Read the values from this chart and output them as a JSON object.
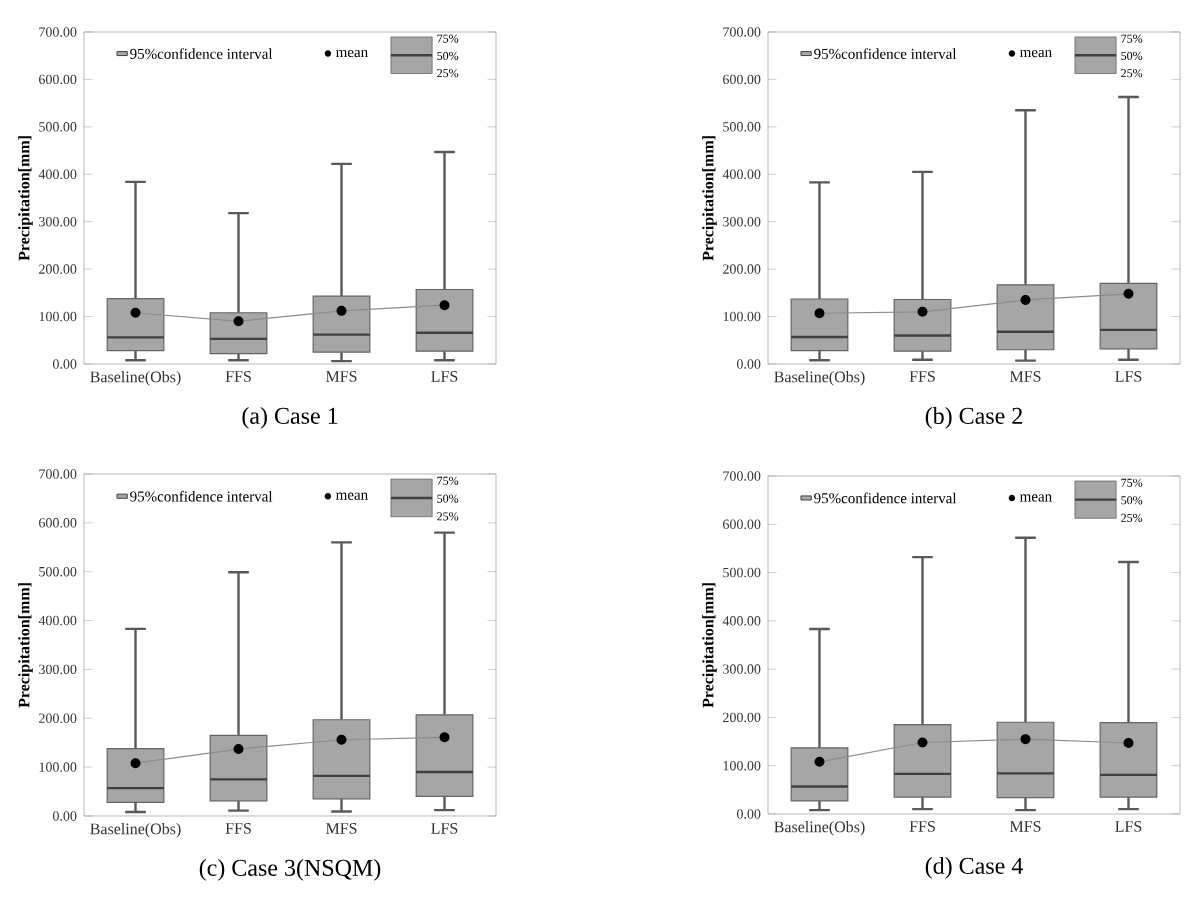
{
  "chart_data": [
    {
      "type": "box",
      "title": "(a) Case 1",
      "ylabel": "Precipitation[mm]",
      "categories": [
        "Baseline(Obs)",
        "FFS",
        "MFS",
        "LFS"
      ],
      "ylim": [
        0,
        700
      ],
      "yticks": [
        {
          "value": 0,
          "label": "0.00"
        },
        {
          "value": 100,
          "label": "100.00"
        },
        {
          "value": 200,
          "label": "200.00"
        },
        {
          "value": 300,
          "label": "300.00"
        },
        {
          "value": 400,
          "label": "400.00"
        },
        {
          "value": 500,
          "label": "500.00"
        },
        {
          "value": 600,
          "label": "600.00"
        },
        {
          "value": 700,
          "label": "700.00"
        }
      ],
      "legend": "top",
      "marker": "circle",
      "annotations": [
        "75%",
        "50%",
        "25%"
      ],
      "series": [
        {
          "name": "95%confidence interval",
          "color": "#a6a6a6",
          "boxes": [
            {
              "low": 8,
              "q1": 28,
              "median": 56,
              "q3": 138,
              "high": 384
            },
            {
              "low": 8,
              "q1": 22,
              "median": 53,
              "q3": 108,
              "high": 318
            },
            {
              "low": 6,
              "q1": 25,
              "median": 62,
              "q3": 143,
              "high": 422
            },
            {
              "low": 8,
              "q1": 27,
              "median": 66,
              "q3": 157,
              "high": 447
            }
          ]
        },
        {
          "name": "mean",
          "type": "line",
          "color": "#000000",
          "values": [
            108,
            90,
            112,
            124
          ]
        }
      ]
    },
    {
      "type": "box",
      "title": "(b) Case 2",
      "ylabel": "Precipitation[mm]",
      "categories": [
        "Baseline(Obs)",
        "FFS",
        "MFS",
        "LFS"
      ],
      "ylim": [
        0,
        700
      ],
      "yticks": [
        {
          "value": 0,
          "label": "0.00"
        },
        {
          "value": 100,
          "label": "100.00"
        },
        {
          "value": 200,
          "label": "200.00"
        },
        {
          "value": 300,
          "label": "300.00"
        },
        {
          "value": 400,
          "label": "400.00"
        },
        {
          "value": 500,
          "label": "500.00"
        },
        {
          "value": 600,
          "label": "600.00"
        },
        {
          "value": 700,
          "label": "700.00"
        }
      ],
      "legend": "top",
      "marker": "circle",
      "annotations": [
        "75%",
        "50%",
        "25%"
      ],
      "series": [
        {
          "name": "95%confidence interval",
          "color": "#a6a6a6",
          "boxes": [
            {
              "low": 8,
              "q1": 28,
              "median": 57,
              "q3": 137,
              "high": 383
            },
            {
              "low": 9,
              "q1": 27,
              "median": 60,
              "q3": 136,
              "high": 405
            },
            {
              "low": 7,
              "q1": 30,
              "median": 68,
              "q3": 167,
              "high": 535
            },
            {
              "low": 9,
              "q1": 32,
              "median": 72,
              "q3": 170,
              "high": 563
            }
          ]
        },
        {
          "name": "mean",
          "type": "line",
          "color": "#000000",
          "values": [
            107,
            110,
            135,
            148
          ]
        }
      ]
    },
    {
      "type": "box",
      "title": "(c) Case 3(NSQM)",
      "ylabel": "Precipitation[mm]",
      "categories": [
        "Baseline(Obs)",
        "FFS",
        "MFS",
        "LFS"
      ],
      "ylim": [
        0,
        700
      ],
      "yticks": [
        {
          "value": 0,
          "label": "0.00"
        },
        {
          "value": 100,
          "label": "100.00"
        },
        {
          "value": 200,
          "label": "200.00"
        },
        {
          "value": 300,
          "label": "300.00"
        },
        {
          "value": 400,
          "label": "400.00"
        },
        {
          "value": 500,
          "label": "500.00"
        },
        {
          "value": 600,
          "label": "600.00"
        },
        {
          "value": 700,
          "label": "700.00"
        }
      ],
      "legend": "top",
      "marker": "circle",
      "annotations": [
        "75%",
        "50%",
        "25%"
      ],
      "series": [
        {
          "name": "95%confidence interval",
          "color": "#a6a6a6",
          "boxes": [
            {
              "low": 8,
              "q1": 28,
              "median": 57,
              "q3": 138,
              "high": 383
            },
            {
              "low": 11,
              "q1": 31,
              "median": 75,
              "q3": 165,
              "high": 499
            },
            {
              "low": 9,
              "q1": 35,
              "median": 82,
              "q3": 197,
              "high": 560
            },
            {
              "low": 12,
              "q1": 40,
              "median": 90,
              "q3": 207,
              "high": 580
            }
          ]
        },
        {
          "name": "mean",
          "type": "line",
          "color": "#000000",
          "values": [
            108,
            137,
            156,
            161
          ]
        }
      ]
    },
    {
      "type": "box",
      "title": "(d) Case 4",
      "ylabel": "Precipitation[mm]",
      "categories": [
        "Baseline(Obs)",
        "FFS",
        "MFS",
        "LFS"
      ],
      "ylim": [
        0,
        700
      ],
      "yticks": [
        {
          "value": 0,
          "label": "0.00"
        },
        {
          "value": 100,
          "label": "100.00"
        },
        {
          "value": 200,
          "label": "200.00"
        },
        {
          "value": 300,
          "label": "300.00"
        },
        {
          "value": 400,
          "label": "400.00"
        },
        {
          "value": 500,
          "label": "500.00"
        },
        {
          "value": 600,
          "label": "600.00"
        },
        {
          "value": 700,
          "label": "700.00"
        }
      ],
      "legend": "top",
      "marker": "circle",
      "annotations": [
        "75%",
        "50%",
        "25%"
      ],
      "series": [
        {
          "name": "95%confidence interval",
          "color": "#a6a6a6",
          "boxes": [
            {
              "low": 8,
              "q1": 27,
              "median": 57,
              "q3": 137,
              "high": 383
            },
            {
              "low": 10,
              "q1": 35,
              "median": 83,
              "q3": 185,
              "high": 532
            },
            {
              "low": 8,
              "q1": 34,
              "median": 84,
              "q3": 190,
              "high": 572
            },
            {
              "low": 10,
              "q1": 35,
              "median": 81,
              "q3": 189,
              "high": 522
            }
          ]
        },
        {
          "name": "mean",
          "type": "line",
          "color": "#000000",
          "values": [
            108,
            148,
            155,
            147
          ]
        }
      ]
    }
  ]
}
